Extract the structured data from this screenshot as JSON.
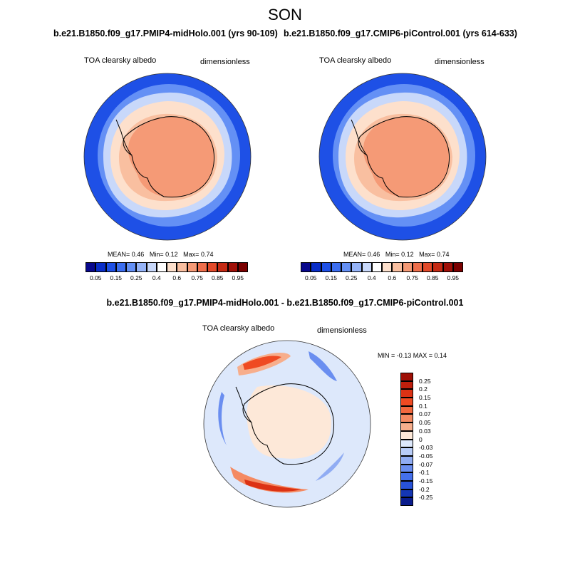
{
  "season": "SON",
  "top_left": {
    "run": "b.e21.B1850.f09_g17.PMIP4-midHolo.001 (yrs 90-109)",
    "variable": "TOA clearsky albedo",
    "units": "dimensionless",
    "stats": {
      "mean_label": "MEAN=",
      "mean": "0.46",
      "min_label": "Min=",
      "min": "0.12",
      "max_label": "Max=",
      "max": "0.74"
    }
  },
  "top_right": {
    "run": "b.e21.B1850.f09_g17.CMIP6-piControl.001 (yrs 614-633)",
    "variable": "TOA clearsky albedo",
    "units": "dimensionless",
    "stats": {
      "mean_label": "MEAN=",
      "mean": "0.46",
      "min_label": "Min=",
      "min": "0.12",
      "max_label": "Max=",
      "max": "0.74"
    }
  },
  "difference": {
    "title": "b.e21.B1850.f09_g17.PMIP4-midHolo.001 - b.e21.B1850.f09_g17.CMIP6-piControl.001",
    "variable": "TOA clearsky albedo",
    "units": "dimensionless",
    "minmax": "MIN = -0.13 MAX =  0.14"
  },
  "albedo_colorbar": {
    "labels": [
      "0.05",
      "0.15",
      "0.25",
      "0.4",
      "0.6",
      "0.75",
      "0.85",
      "0.95"
    ],
    "colors": [
      "#08088c",
      "#0a2ec8",
      "#1e50e6",
      "#3c6ef0",
      "#6490f5",
      "#96b4f8",
      "#c8d8fa",
      "#ffffff",
      "#fde0cc",
      "#f9bfa0",
      "#f59a76",
      "#ef6f4c",
      "#e24a2a",
      "#c52a14",
      "#a01008",
      "#7a0000"
    ]
  },
  "diff_colorbar": {
    "labels": [
      "0.25",
      "0.2",
      "0.15",
      "0.1",
      "0.07",
      "0.05",
      "0.03",
      "0",
      "-0.03",
      "-0.05",
      "-0.07",
      "-0.1",
      "-0.15",
      "-0.2",
      "-0.25"
    ],
    "colors": [
      "#9e0f06",
      "#bf1e0c",
      "#dc3214",
      "#ef4a22",
      "#f2683e",
      "#f48a62",
      "#f7ae8c",
      "#fde8d8",
      "#dde8fb",
      "#b8ccf7",
      "#90acf3",
      "#6a8ef0",
      "#4470ec",
      "#2852d8",
      "#1436b4",
      "#0a1c8c"
    ]
  }
}
